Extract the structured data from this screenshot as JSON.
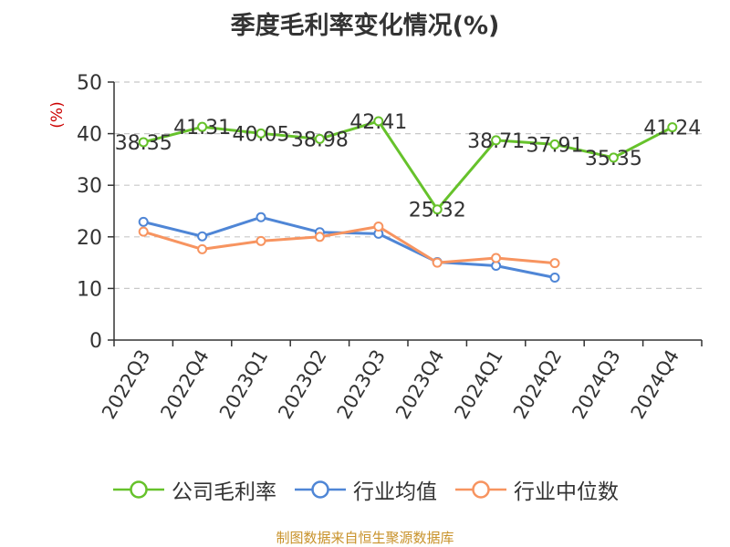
{
  "title": "季度毛利率变化情况(%)",
  "source": "制图数据来自恒生聚源数据库",
  "colors": {
    "company": "#66c22b",
    "industry_avg": "#4f86d6",
    "industry_median": "#f79460",
    "axis": "#333333",
    "grid": "#c8c8c8",
    "unit": "#cc0000"
  },
  "chart_data": {
    "type": "line",
    "title": "季度毛利率变化情况(%)",
    "ylabel": "(%)",
    "xlabel": "",
    "ylim": [
      0,
      50
    ],
    "yticks": [
      0,
      10,
      20,
      30,
      40,
      50
    ],
    "grid": true,
    "legend_position": "bottom",
    "categories": [
      "2022Q3",
      "2022Q4",
      "2023Q1",
      "2023Q2",
      "2023Q3",
      "2023Q4",
      "2024Q1",
      "2024Q2",
      "2024Q3",
      "2024Q4"
    ],
    "series": [
      {
        "name": "公司毛利率",
        "color": "#66c22b",
        "values": [
          38.35,
          41.31,
          40.05,
          38.98,
          42.41,
          25.32,
          38.71,
          37.91,
          35.35,
          41.24
        ],
        "data_labels": [
          "38.35",
          "41.31",
          "40.05",
          "38.98",
          "42.41",
          "25.32",
          "38.71",
          "37.91",
          "35.35",
          "41.24"
        ]
      },
      {
        "name": "行业均值",
        "color": "#4f86d6",
        "values": [
          22.9,
          20.1,
          23.8,
          20.9,
          20.6,
          15.1,
          14.4,
          12.1,
          null,
          null
        ]
      },
      {
        "name": "行业中位数",
        "color": "#f79460",
        "values": [
          21.0,
          17.6,
          19.2,
          20.0,
          22.0,
          15.0,
          15.9,
          14.9,
          null,
          null
        ]
      }
    ]
  }
}
